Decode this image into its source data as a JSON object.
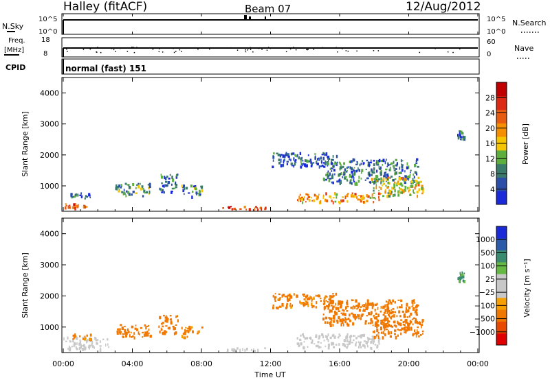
{
  "header": {
    "station": "Halley (fitACF)",
    "beam": "Beam 07",
    "date": "12/Aug/2012"
  },
  "panels": {
    "nsky_label": "N.Sky",
    "nsky_ticks": [
      "10^5",
      "10^0"
    ],
    "nsearch_label": "N.Search",
    "nsearch_ticks": [
      "10^5",
      "10^0"
    ],
    "freq_label": "Freq.",
    "freq_unit": "[MHz]",
    "freq_ticks": [
      "18",
      "8"
    ],
    "nave_label": "Nave",
    "nave_ticks": [
      "60",
      "0"
    ],
    "cpid_label": "CPID",
    "cpid_value": "normal (fast) 151"
  },
  "colors": {
    "power": [
      "#1a2adb",
      "#2b4fa8",
      "#3a7a6a",
      "#5cae3e",
      "#f5c600",
      "#f58f00",
      "#e85a10",
      "#dc2a14",
      "#c00000"
    ],
    "velocity": [
      "#e00000",
      "#e84800",
      "#f07800",
      "#f5a000",
      "#c8c8c8",
      "#c8c8c8",
      "#66b844",
      "#3a8a70",
      "#2a5aa8",
      "#1a2ad8"
    ]
  },
  "chart_data": [
    {
      "type": "heatmap",
      "title": "",
      "xlabel": "",
      "ylabel": "Slant Range [km]",
      "xlim": [
        "00:00",
        "24:00"
      ],
      "ylim": [
        180,
        4500
      ],
      "colorbar_label": "Power [dB]",
      "colorbar_ticks": [
        "4",
        "8",
        "12",
        "16",
        "20",
        "24",
        "28"
      ],
      "y_ticks": [
        "1000",
        "2000",
        "3000",
        "4000"
      ],
      "patches": [
        {
          "x": [
            0.0,
            1.3
          ],
          "y": [
            300,
            450
          ],
          "value": 28
        },
        {
          "x": [
            0.3,
            1.6
          ],
          "y": [
            620,
            800
          ],
          "value": 8
        },
        {
          "x": [
            3.0,
            5.0
          ],
          "y": [
            700,
            1100
          ],
          "value": 12
        },
        {
          "x": [
            5.5,
            6.6
          ],
          "y": [
            800,
            1400
          ],
          "value": 8
        },
        {
          "x": [
            6.8,
            8.0
          ],
          "y": [
            680,
            1050
          ],
          "value": 10
        },
        {
          "x": [
            9.2,
            11.8
          ],
          "y": [
            260,
            360
          ],
          "value": 28
        },
        {
          "x": [
            12.0,
            15.8
          ],
          "y": [
            1650,
            2100
          ],
          "value": 6
        },
        {
          "x": [
            13.5,
            18.3
          ],
          "y": [
            500,
            800
          ],
          "value": 22
        },
        {
          "x": [
            15.0,
            20.5
          ],
          "y": [
            1100,
            1900
          ],
          "value": 8
        },
        {
          "x": [
            17.8,
            20.8
          ],
          "y": [
            700,
            1300
          ],
          "value": 18
        },
        {
          "x": [
            22.8,
            23.2
          ],
          "y": [
            2500,
            2800
          ],
          "value": 8
        }
      ]
    },
    {
      "type": "heatmap",
      "title": "",
      "xlabel": "Time UT",
      "ylabel": "Slant Range [km]",
      "xlim": [
        "00:00",
        "24:00"
      ],
      "ylim": [
        180,
        4500
      ],
      "x_ticks": [
        "00:00",
        "04:00",
        "08:00",
        "12:00",
        "16:00",
        "20:00",
        "00:00"
      ],
      "y_ticks": [
        "1000",
        "2000",
        "3000",
        "4000"
      ],
      "colorbar_label": "Velocity [m s⁻¹]",
      "colorbar_ticks": [
        "1000",
        "500",
        "100",
        "25",
        "−25",
        "−100",
        "−500",
        "−1000"
      ],
      "patches": [
        {
          "x": [
            0.0,
            2.6
          ],
          "y": [
            300,
            700
          ],
          "value": 0
        },
        {
          "x": [
            0.3,
            1.6
          ],
          "y": [
            620,
            800
          ],
          "value": -150
        },
        {
          "x": [
            3.0,
            5.0
          ],
          "y": [
            700,
            1100
          ],
          "value": -200
        },
        {
          "x": [
            5.5,
            6.6
          ],
          "y": [
            800,
            1400
          ],
          "value": -200
        },
        {
          "x": [
            6.8,
            8.0
          ],
          "y": [
            680,
            1050
          ],
          "value": -150
        },
        {
          "x": [
            9.2,
            11.8
          ],
          "y": [
            260,
            360
          ],
          "value": 0
        },
        {
          "x": [
            12.0,
            15.8
          ],
          "y": [
            1650,
            2100
          ],
          "value": -150
        },
        {
          "x": [
            13.5,
            18.3
          ],
          "y": [
            350,
            800
          ],
          "value": 0
        },
        {
          "x": [
            15.0,
            20.5
          ],
          "y": [
            1100,
            1900
          ],
          "value": -200
        },
        {
          "x": [
            17.8,
            20.8
          ],
          "y": [
            700,
            1300
          ],
          "value": -250
        },
        {
          "x": [
            22.8,
            23.2
          ],
          "y": [
            2500,
            2800
          ],
          "value": 150
        }
      ]
    }
  ]
}
